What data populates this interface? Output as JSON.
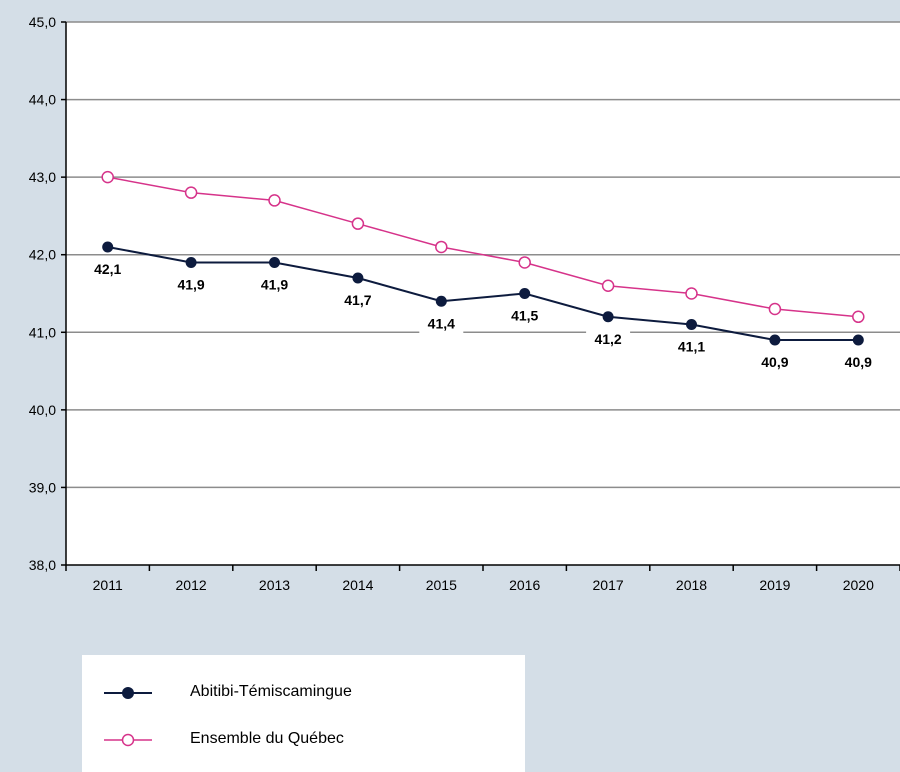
{
  "chart_data": {
    "type": "line",
    "title": "",
    "xlabel": "",
    "ylabel": "",
    "categories": [
      "2011",
      "2012",
      "2013",
      "2014",
      "2015",
      "2016",
      "2017",
      "2018",
      "2019",
      "2020"
    ],
    "ylim": [
      38.0,
      45.0
    ],
    "yticks": [
      "38,0",
      "39,0",
      "40,0",
      "41,0",
      "42,0",
      "43,0",
      "44,0",
      "45,0"
    ],
    "grid": true,
    "legend_position": "bottom-left",
    "series": [
      {
        "name": "Abitibi-Témiscamingue",
        "values": [
          42.1,
          41.9,
          41.9,
          41.7,
          41.4,
          41.5,
          41.2,
          41.1,
          40.9,
          40.9
        ],
        "labels": [
          "42,1",
          "41,9",
          "41,9",
          "41,7",
          "41,4",
          "41,5",
          "41,2",
          "41,1",
          "40,9",
          "40,9"
        ],
        "color": "#0d1b3e",
        "marker": "filled-circle"
      },
      {
        "name": "Ensemble du Québec",
        "values": [
          43.0,
          42.8,
          42.7,
          42.4,
          42.1,
          41.9,
          41.6,
          41.5,
          41.3,
          41.2
        ],
        "color": "#d6338a",
        "marker": "open-circle"
      }
    ]
  }
}
